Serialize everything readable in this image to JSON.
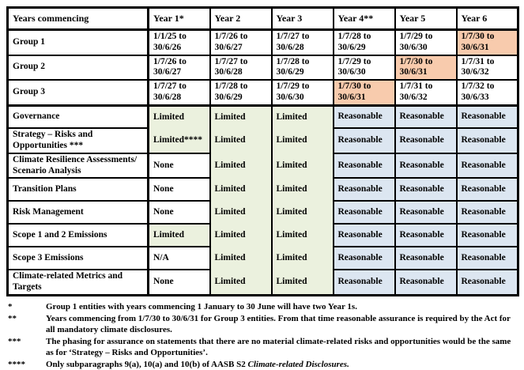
{
  "table": {
    "header": [
      "Years commencing",
      "Year 1*",
      "Year 2",
      "Year 3",
      "Year 4**",
      "Year 5",
      "Year 6"
    ],
    "groups": [
      {
        "label": "Group 1",
        "cells": [
          {
            "text": "1/1/25 to\n30/6/26",
            "highlight": false
          },
          {
            "text": "1/7/26 to\n30/6/27",
            "highlight": false
          },
          {
            "text": "1/7/27 to\n30/6/28",
            "highlight": false
          },
          {
            "text": "1/7/28 to\n30/6/29",
            "highlight": false
          },
          {
            "text": "1/7/29 to\n30/6/30",
            "highlight": false
          },
          {
            "text": "1/7/30 to\n30/6/31",
            "highlight": true
          }
        ]
      },
      {
        "label": "Group 2",
        "cells": [
          {
            "text": "1/7/26 to\n30/6/27",
            "highlight": false
          },
          {
            "text": "1/7/27 to\n30/6/28",
            "highlight": false
          },
          {
            "text": "1/7/28 to\n30/6/29",
            "highlight": false
          },
          {
            "text": "1/7/29 to\n30/6/30",
            "highlight": false
          },
          {
            "text": "1/7/30 to\n30/6/31",
            "highlight": true
          },
          {
            "text": "1/7/31 to\n30/6/32",
            "highlight": false
          }
        ]
      },
      {
        "label": "Group 3",
        "cells": [
          {
            "text": "1/7/27 to\n30/6/28",
            "highlight": false
          },
          {
            "text": "1/7/28 to\n30/6/29",
            "highlight": false
          },
          {
            "text": "1/7/29 to\n30/6/30",
            "highlight": false
          },
          {
            "text": "1/7/30 to\n30/6/31",
            "highlight": true
          },
          {
            "text": "1/7/31 to\n30/6/32",
            "highlight": false
          },
          {
            "text": "1/7/32 to\n30/6/33",
            "highlight": false
          }
        ]
      }
    ],
    "rows": [
      {
        "label": "Governance",
        "cells": [
          "Limited",
          "Limited",
          "Limited",
          "Reasonable",
          "Reasonable",
          "Reasonable"
        ]
      },
      {
        "label": "Strategy – Risks and\nOpportunities ***",
        "cells": [
          "Limited****",
          "Limited",
          "Limited",
          "Reasonable",
          "Reasonable",
          "Reasonable"
        ]
      },
      {
        "label": "Climate Resilience Assessments/\nScenario Analysis",
        "cells": [
          "None",
          "Limited",
          "Limited",
          "Reasonable",
          "Reasonable",
          "Reasonable"
        ]
      },
      {
        "label": "Transition Plans",
        "cells": [
          "None",
          "Limited",
          "Limited",
          "Reasonable",
          "Reasonable",
          "Reasonable"
        ]
      },
      {
        "label": "Risk Management",
        "cells": [
          "None",
          "Limited",
          "Limited",
          "Reasonable",
          "Reasonable",
          "Reasonable"
        ]
      },
      {
        "label": "Scope 1 and 2 Emissions",
        "cells": [
          "Limited",
          "Limited",
          "Limited",
          "Reasonable",
          "Reasonable",
          "Reasonable"
        ]
      },
      {
        "label": "Scope 3 Emissions",
        "cells": [
          "N/A",
          "Limited",
          "Limited",
          "Reasonable",
          "Reasonable",
          "Reasonable"
        ]
      },
      {
        "label": "Climate-related Metrics and\nTargets",
        "cells": [
          "None",
          "Limited",
          "Limited",
          "Reasonable",
          "Reasonable",
          "Reasonable"
        ]
      }
    ]
  },
  "footnotes": [
    {
      "marker": "*",
      "text": "Group 1 entities with years commencing 1 January to 30 June will have two Year 1s."
    },
    {
      "marker": "**",
      "text": "Years commencing from 1/7/30 to 30/6/31 for Group 3 entities. From that time reasonable assurance is required by the Act for all mandatory climate disclosures."
    },
    {
      "marker": "***",
      "text": "The phasing for assurance on statements that there are no material climate-related risks and opportunities would be the same as for ‘Strategy – Risks and Opportunities’."
    },
    {
      "marker": "****",
      "text": "Only subparagraphs 9(a), 10(a) and 10(b) of AASB S2 ",
      "italic": "Climate-related Disclosures."
    }
  ],
  "colors": {
    "limited_green": "#EBF1DE",
    "reasonable_blue": "#DCE6F1",
    "highlight_orange": "#F8CBAD",
    "border": "#000000"
  }
}
